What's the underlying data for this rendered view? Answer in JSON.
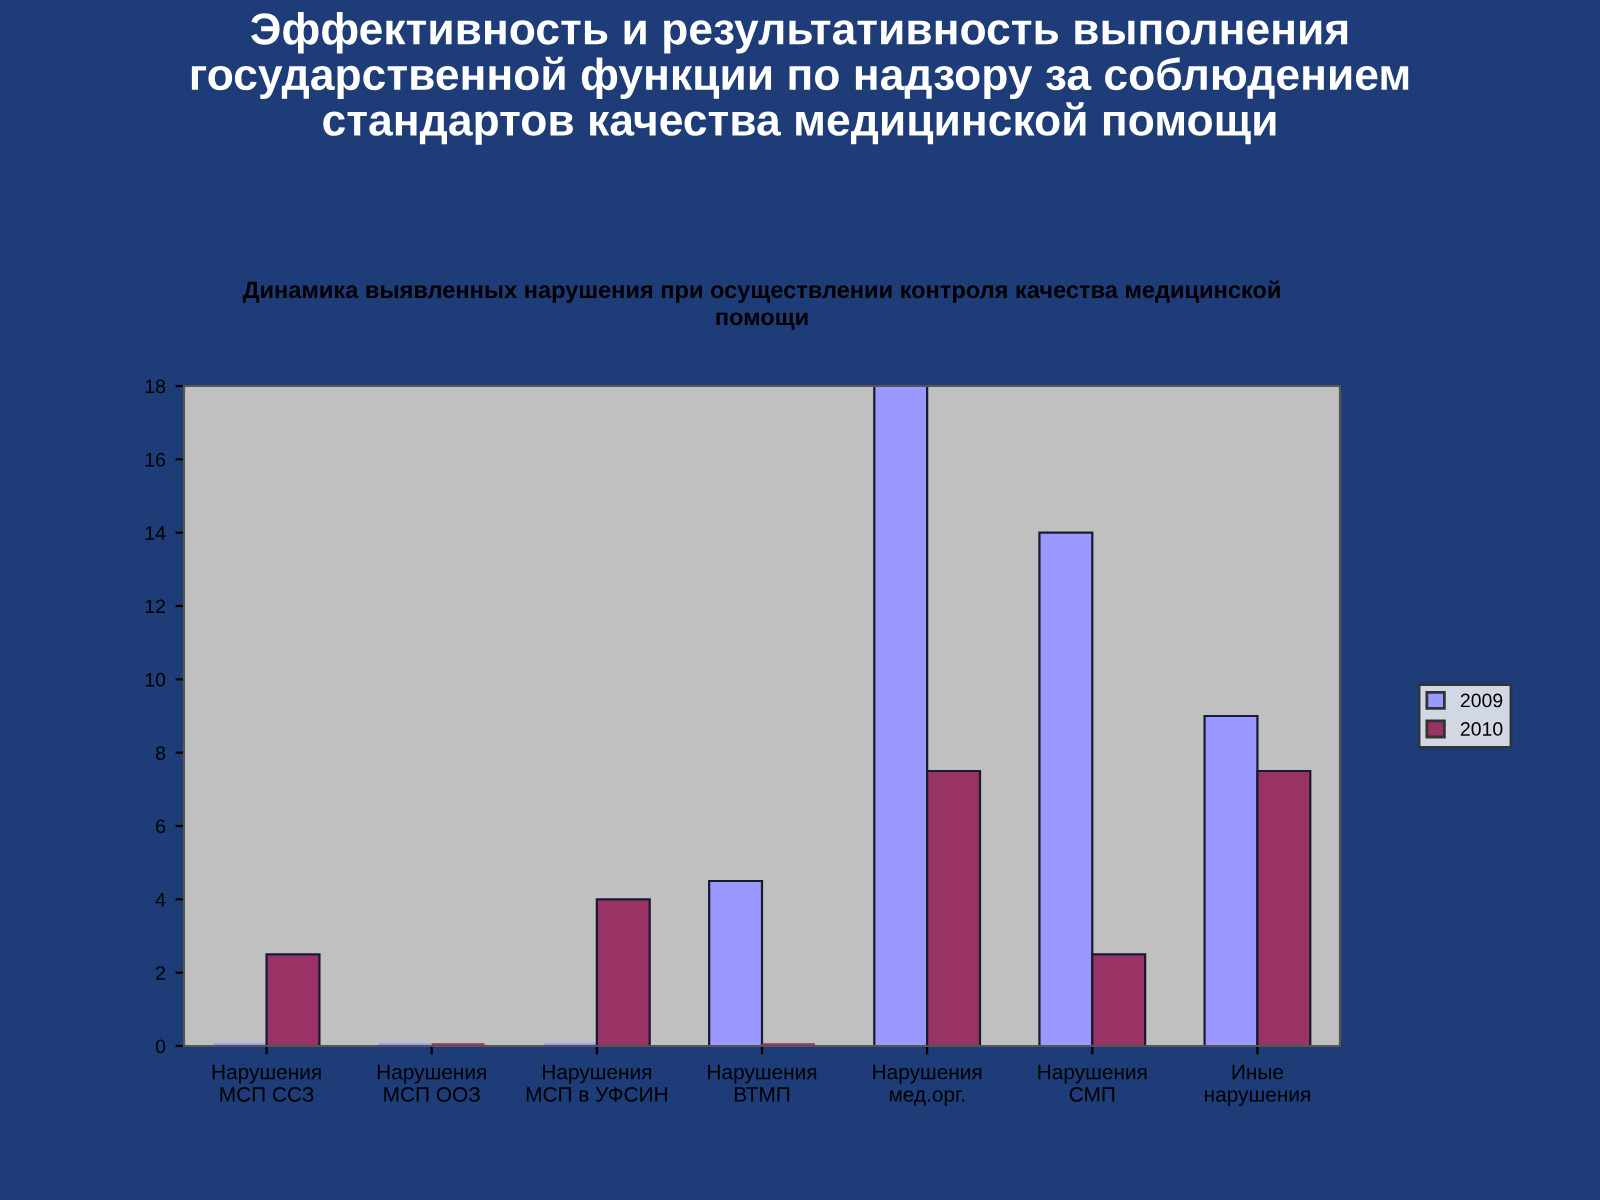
{
  "chart_data": {
    "type": "bar",
    "title": "Эффективность и результативность выполнения государственной функции по надзору за соблюдением стандартов качества медицинской помощи",
    "subtitle": "Динамика выявленных нарушения при осуществлении контроля качества медицинской помощи",
    "categories": [
      "Нарушения МСП ССЗ",
      "Нарушения МСП ООЗ",
      "Нарушения МСП в УФСИН",
      "Нарушения ВТМП",
      "Нарушения мед.орг.",
      "Нарушения СМП",
      "Иные нарушения"
    ],
    "series": [
      {
        "name": "2009",
        "color": "#9999ff",
        "values": [
          0,
          0,
          0,
          4.5,
          18,
          14,
          9
        ]
      },
      {
        "name": "2010",
        "color": "#993366",
        "values": [
          2.5,
          0,
          4,
          0,
          7.5,
          2.5,
          7.5
        ]
      }
    ],
    "ylim": [
      0,
      18
    ],
    "yticks": [
      0,
      2,
      4,
      6,
      8,
      10,
      12,
      14,
      16,
      18
    ],
    "grid": false,
    "legend": "right"
  }
}
